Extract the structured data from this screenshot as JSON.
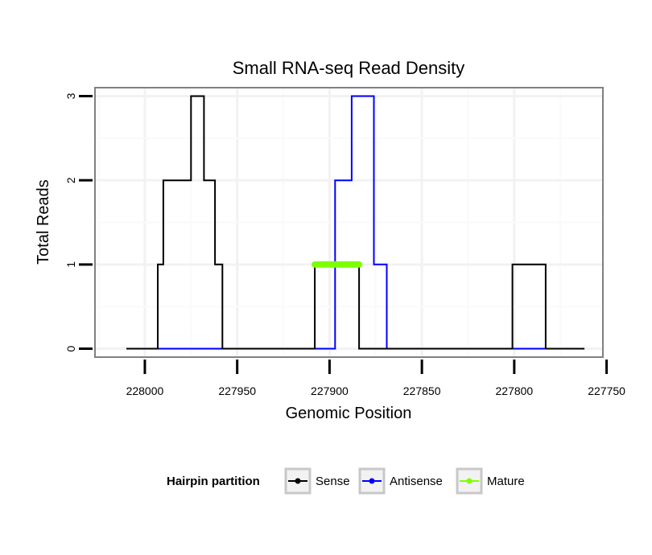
{
  "chart_data": {
    "type": "line",
    "title": "Small RNA-seq Read Density",
    "xlabel": "Genomic Position",
    "ylabel": "Total Reads",
    "xlim": [
      228027,
      227752
    ],
    "ylim": [
      -0.1,
      3.1
    ],
    "x_reversed": true,
    "x_ticks": [
      228000,
      227950,
      227900,
      227850,
      227800,
      227750
    ],
    "y_ticks": [
      0,
      1,
      2,
      3
    ],
    "grid": true,
    "legend": {
      "title": "Hairpin partition",
      "position": "bottom",
      "entries": [
        "Sense",
        "Antisense",
        "Mature"
      ]
    },
    "series": [
      {
        "name": "Sense",
        "color": "#000000",
        "points": [
          [
            228010,
            0
          ],
          [
            227993,
            0
          ],
          [
            227993,
            1
          ],
          [
            227990,
            1
          ],
          [
            227990,
            2
          ],
          [
            227975,
            2
          ],
          [
            227975,
            3
          ],
          [
            227968,
            3
          ],
          [
            227968,
            2
          ],
          [
            227962,
            2
          ],
          [
            227962,
            1
          ],
          [
            227958,
            1
          ],
          [
            227958,
            0
          ],
          [
            227908,
            0
          ],
          [
            227908,
            1
          ],
          [
            227884,
            1
          ],
          [
            227884,
            0
          ],
          [
            227801,
            0
          ],
          [
            227801,
            1
          ],
          [
            227783,
            1
          ],
          [
            227783,
            0
          ],
          [
            227762,
            0
          ]
        ]
      },
      {
        "name": "Antisense",
        "color": "#0000ff",
        "points": [
          [
            227993,
            0
          ],
          [
            227897,
            0
          ],
          [
            227897,
            2
          ],
          [
            227888,
            2
          ],
          [
            227888,
            3
          ],
          [
            227876,
            3
          ],
          [
            227876,
            1
          ],
          [
            227869,
            1
          ],
          [
            227869,
            0
          ],
          [
            227783,
            0
          ]
        ]
      },
      {
        "name": "Mature",
        "color": "#7fff00",
        "points": [
          [
            227908,
            1
          ],
          [
            227884,
            1
          ]
        ]
      }
    ]
  }
}
